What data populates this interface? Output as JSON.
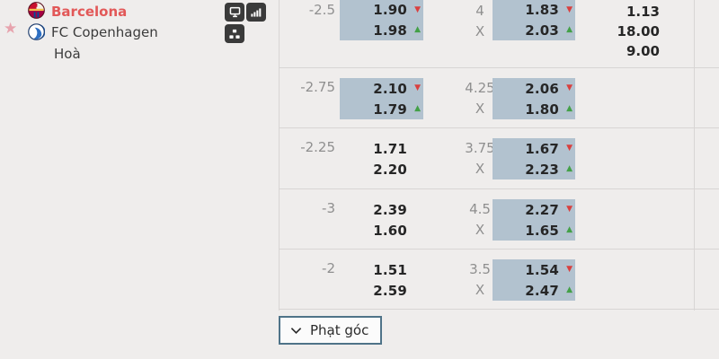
{
  "panel": {
    "favorite": "star",
    "teams": [
      {
        "name": "Barcelona",
        "logo": "barcelona"
      },
      {
        "name": "FC Copenhagen",
        "logo": "fc-copenhagen"
      }
    ],
    "draw_label": "Hoà",
    "tool_icons": [
      "live-tv-icon",
      "stats-bars-icon",
      "lineup-icon"
    ]
  },
  "odds_table": {
    "rows": [
      {
        "handicap": "-2.5",
        "spread": {
          "top": "1.90",
          "bottom": "1.98",
          "highlighted": true,
          "top_trend": "down",
          "bottom_trend": "up"
        },
        "total": "4",
        "x_label": "X",
        "total_odds": {
          "top": "1.83",
          "bottom": "2.03",
          "highlighted": true,
          "top_trend": "down",
          "bottom_trend": "up"
        },
        "outcome": [
          "1.13",
          "18.00",
          "9.00"
        ]
      },
      {
        "handicap": "-2.75",
        "spread": {
          "top": "2.10",
          "bottom": "1.79",
          "highlighted": true,
          "top_trend": "down",
          "bottom_trend": "up"
        },
        "total": "4.25",
        "x_label": "X",
        "total_odds": {
          "top": "2.06",
          "bottom": "1.80",
          "highlighted": true,
          "top_trend": "down",
          "bottom_trend": "up"
        },
        "outcome": []
      },
      {
        "handicap": "-2.25",
        "spread": {
          "top": "1.71",
          "bottom": "2.20",
          "highlighted": false,
          "top_trend": "",
          "bottom_trend": ""
        },
        "total": "3.75",
        "x_label": "X",
        "total_odds": {
          "top": "1.67",
          "bottom": "2.23",
          "highlighted": true,
          "top_trend": "down",
          "bottom_trend": "up"
        },
        "outcome": []
      },
      {
        "handicap": "-3",
        "spread": {
          "top": "2.39",
          "bottom": "1.60",
          "highlighted": false,
          "top_trend": "",
          "bottom_trend": ""
        },
        "total": "4.5",
        "x_label": "X",
        "total_odds": {
          "top": "2.27",
          "bottom": "1.65",
          "highlighted": true,
          "top_trend": "down",
          "bottom_trend": "up"
        },
        "outcome": []
      },
      {
        "handicap": "-2",
        "spread": {
          "top": "1.51",
          "bottom": "2.59",
          "highlighted": false,
          "top_trend": "",
          "bottom_trend": ""
        },
        "total": "3.5",
        "x_label": "X",
        "total_odds": {
          "top": "1.54",
          "bottom": "2.47",
          "highlighted": true,
          "top_trend": "down",
          "bottom_trend": "up"
        },
        "outcome": []
      }
    ]
  },
  "footer": {
    "corners_button": "Phạt góc",
    "chevron_icon": "chevron-down"
  },
  "colors": {
    "page_bg": "#efedec",
    "divider": "#d8d5d4",
    "highlight": "#b2c2cf",
    "up": "#43a047",
    "down": "#d9403f",
    "accent_red": "#e25858",
    "icon_bg": "#3a3a3a",
    "button_border": "#4f7388"
  }
}
